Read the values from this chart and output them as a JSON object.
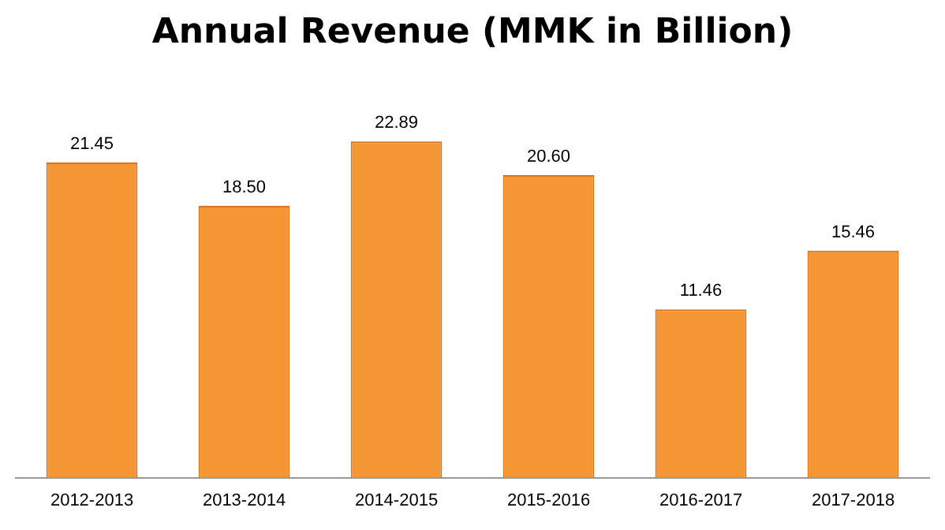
{
  "chart_data": {
    "type": "bar",
    "title": "Annual Revenue (MMK in Billion)",
    "categories": [
      "2012-2013",
      "2013-2014",
      "2014-2015",
      "2015-2016",
      "2016-2017",
      "2017-2018"
    ],
    "values": [
      21.45,
      18.5,
      22.89,
      20.6,
      11.46,
      15.46
    ],
    "value_labels": [
      "21.45",
      "18.50",
      "22.89",
      "20.60",
      "11.46",
      "15.46"
    ],
    "color": "#f59634",
    "grid": false,
    "legend": false
  }
}
